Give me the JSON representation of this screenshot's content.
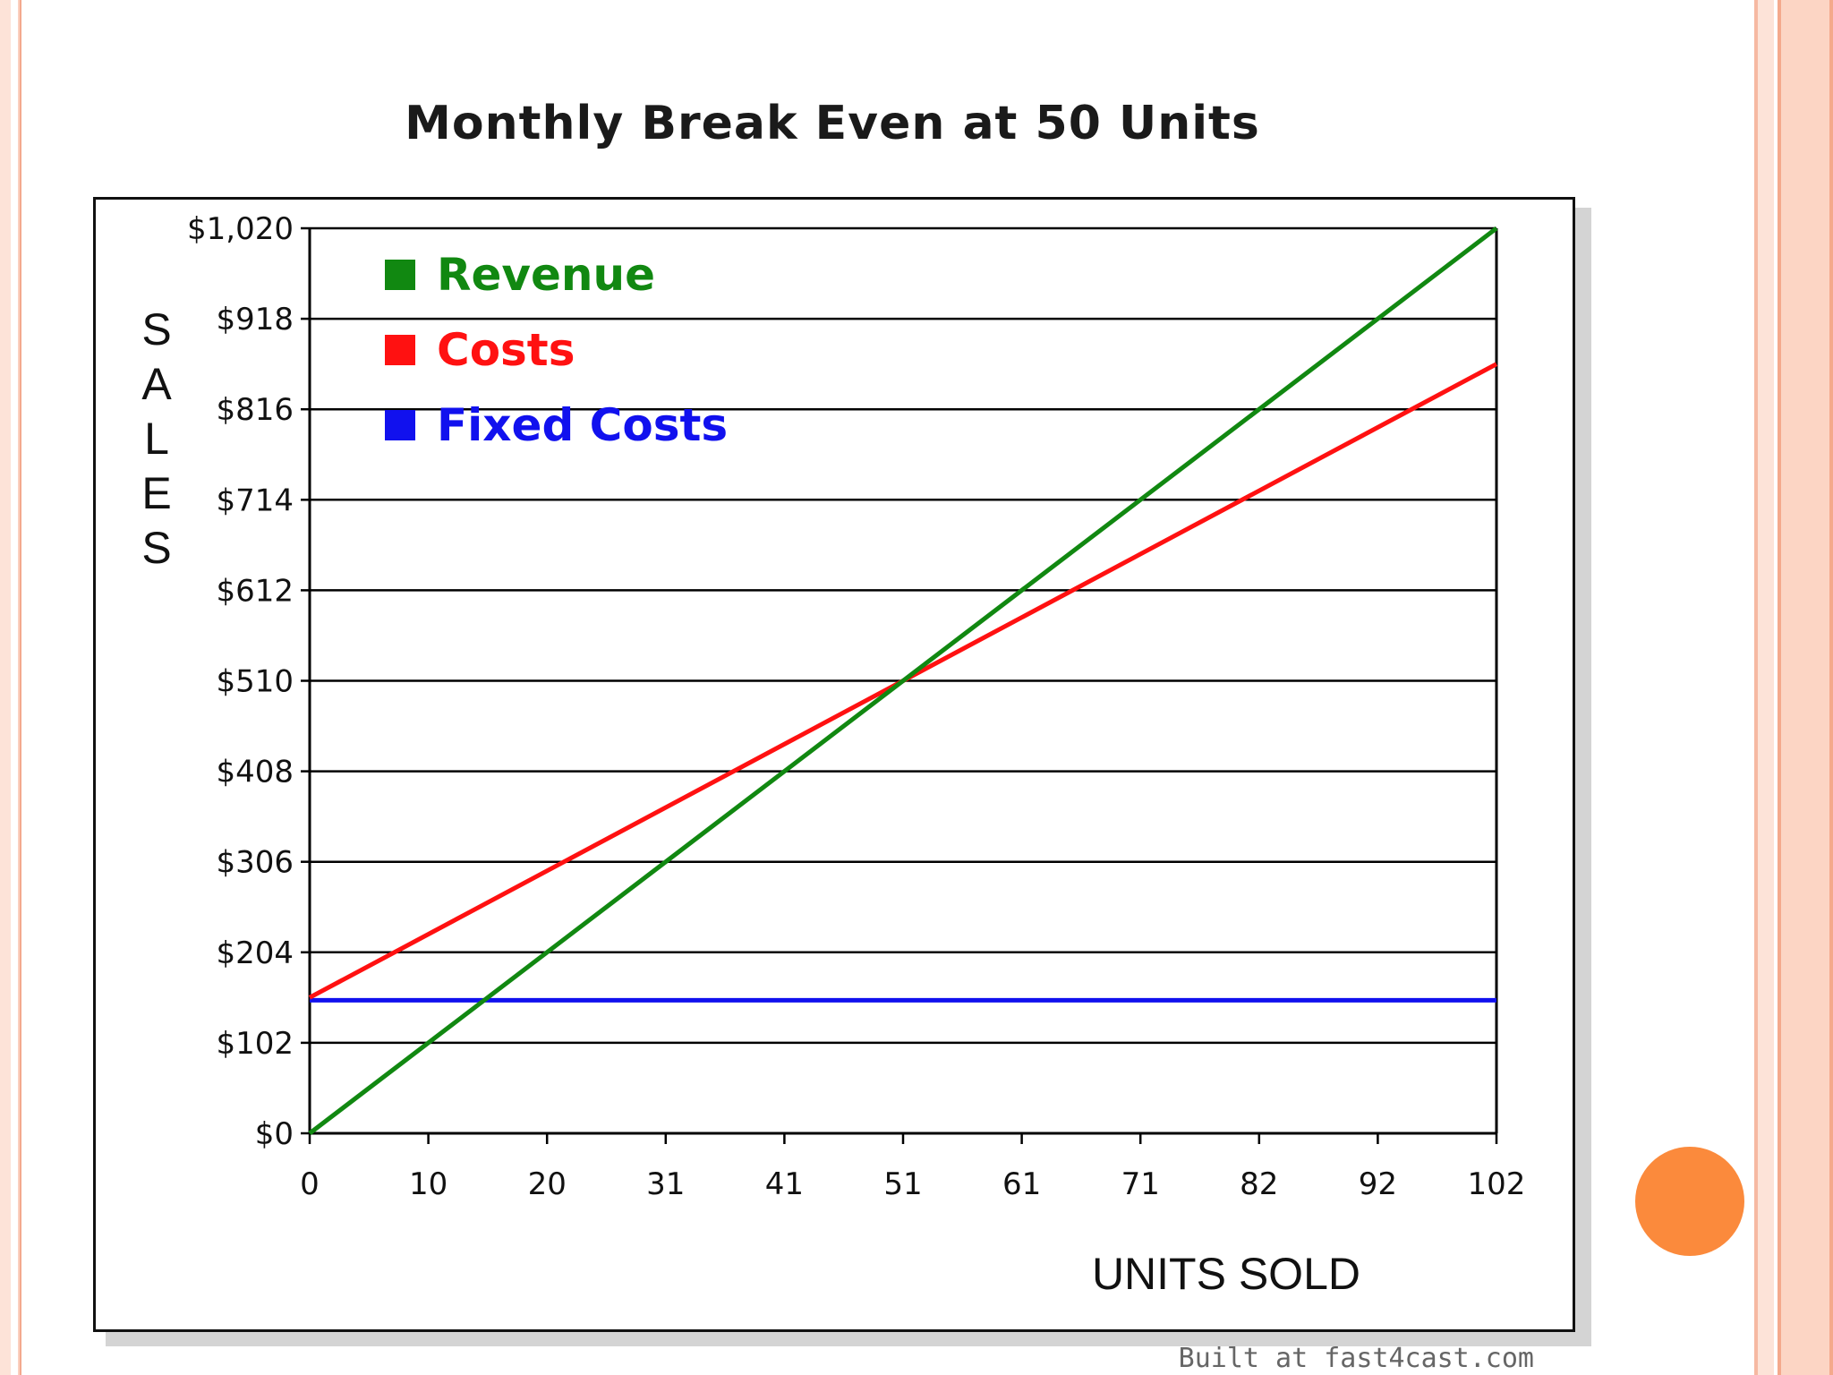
{
  "chart_data": {
    "type": "line",
    "title": "Monthly Break Even at 50 Units",
    "xlabel": "UNITS SOLD",
    "ylabel": "SALES",
    "x_tick_labels": [
      "0",
      "10",
      "20",
      "31",
      "41",
      "51",
      "61",
      "71",
      "82",
      "92",
      "102"
    ],
    "y_tick_labels": [
      "$0",
      "$102",
      "$204",
      "$306",
      "$408",
      "$510",
      "$612",
      "$714",
      "$816",
      "$918",
      "$1,020"
    ],
    "xlim": [
      0,
      102
    ],
    "ylim": [
      0,
      1020
    ],
    "grid": "horizontal",
    "legend_position": "top-left",
    "series": [
      {
        "name": "Revenue",
        "color": "#118811",
        "x": [
          0,
          102
        ],
        "y": [
          0,
          1020
        ]
      },
      {
        "name": "Costs",
        "color": "#ff1111",
        "x": [
          0,
          102
        ],
        "y": [
          153,
          867
        ]
      },
      {
        "name": "Fixed Costs",
        "color": "#1111ee",
        "x": [
          0,
          102
        ],
        "y": [
          150,
          150
        ]
      }
    ]
  },
  "footer": {
    "credit": "Built  at  fast4cast.com"
  }
}
